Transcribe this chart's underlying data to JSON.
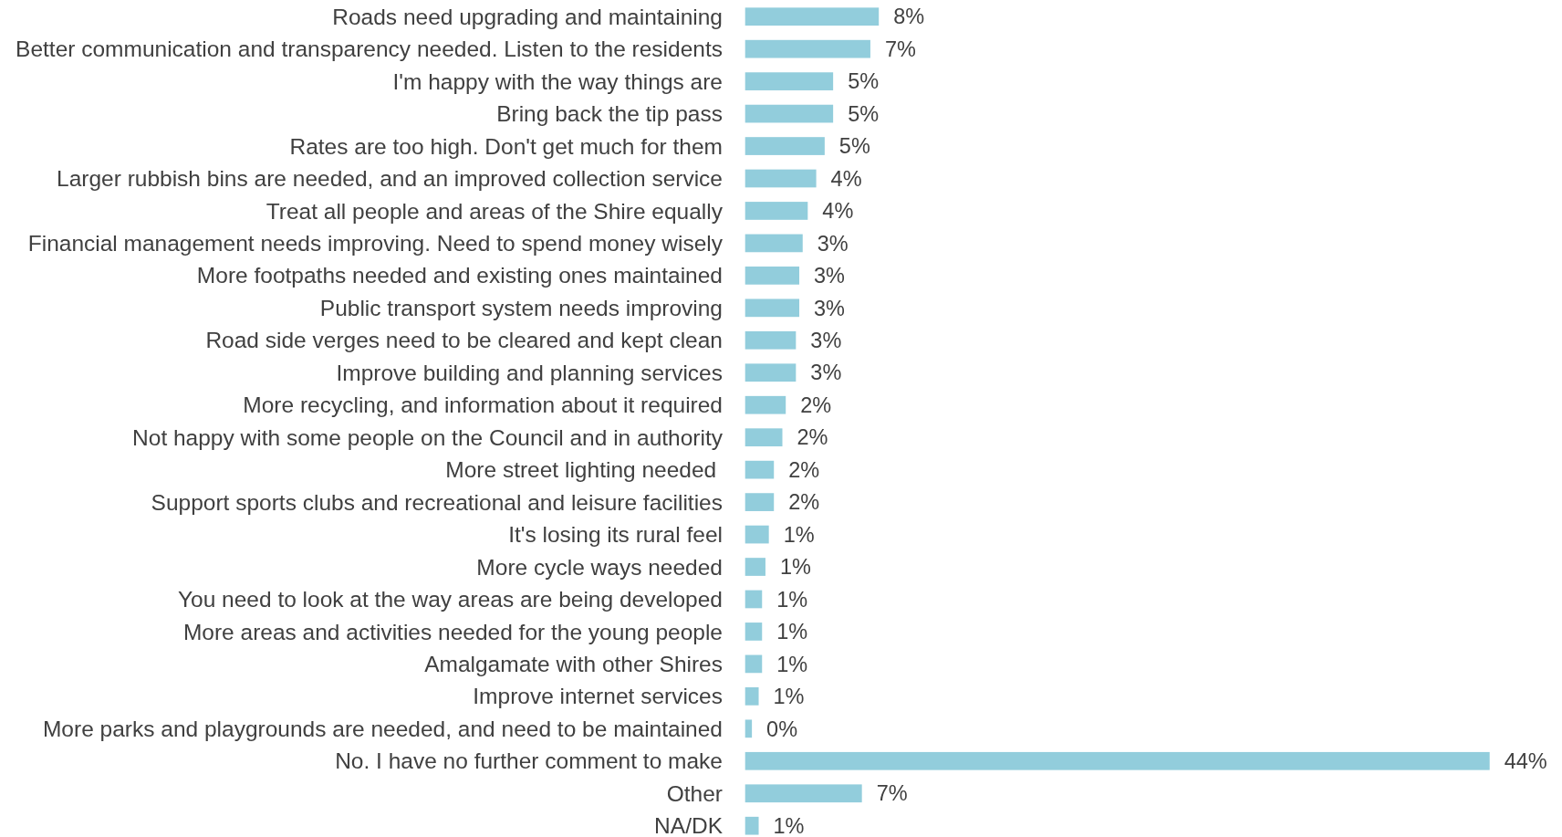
{
  "chart_data": {
    "type": "bar",
    "orientation": "horizontal",
    "color": "#92cddc",
    "categories": [
      "Roads need upgrading and maintaining",
      "Better communication and transparency needed. Listen to the residents",
      "I'm happy with the way things are",
      "Bring back the tip pass",
      "Rates are too high. Don't get much for them",
      "Larger rubbish bins are needed, and an improved collection service",
      "Treat all people and areas of the Shire equally",
      "Financial management needs improving. Need to spend money wisely",
      "More footpaths needed and existing ones maintained",
      "Public transport system needs improving",
      "Road side verges need to be cleared and kept clean",
      "Improve building and planning services",
      "More recycling, and information about it required",
      "Not happy with some people on the Council and in authority",
      "More street lighting needed ",
      "Support sports clubs and recreational and leisure facilities",
      "It's losing its rural feel",
      "More cycle ways needed",
      "You need to look at the way areas are being developed",
      "More areas and activities needed for the young people",
      "Amalgamate with other Shires",
      "Improve internet services",
      "More parks and playgrounds are needed, and need to be maintained",
      "No. I have no further comment to make",
      "Other",
      "NA/DK"
    ],
    "values": [
      7.9,
      7.4,
      5.2,
      5.2,
      4.7,
      4.2,
      3.7,
      3.4,
      3.2,
      3.2,
      3.0,
      3.0,
      2.4,
      2.2,
      1.7,
      1.7,
      1.4,
      1.2,
      1.0,
      1.0,
      1.0,
      0.8,
      0.4,
      44,
      6.9,
      0.8
    ],
    "value_labels": [
      "8%",
      "7%",
      "5%",
      "5%",
      "5%",
      "4%",
      "4%",
      "3%",
      "3%",
      "3%",
      "3%",
      "3%",
      "2%",
      "2%",
      "2%",
      "2%",
      "1%",
      "1%",
      "1%",
      "1%",
      "1%",
      "1%",
      "0%",
      "44%",
      "7%",
      "1%"
    ]
  }
}
